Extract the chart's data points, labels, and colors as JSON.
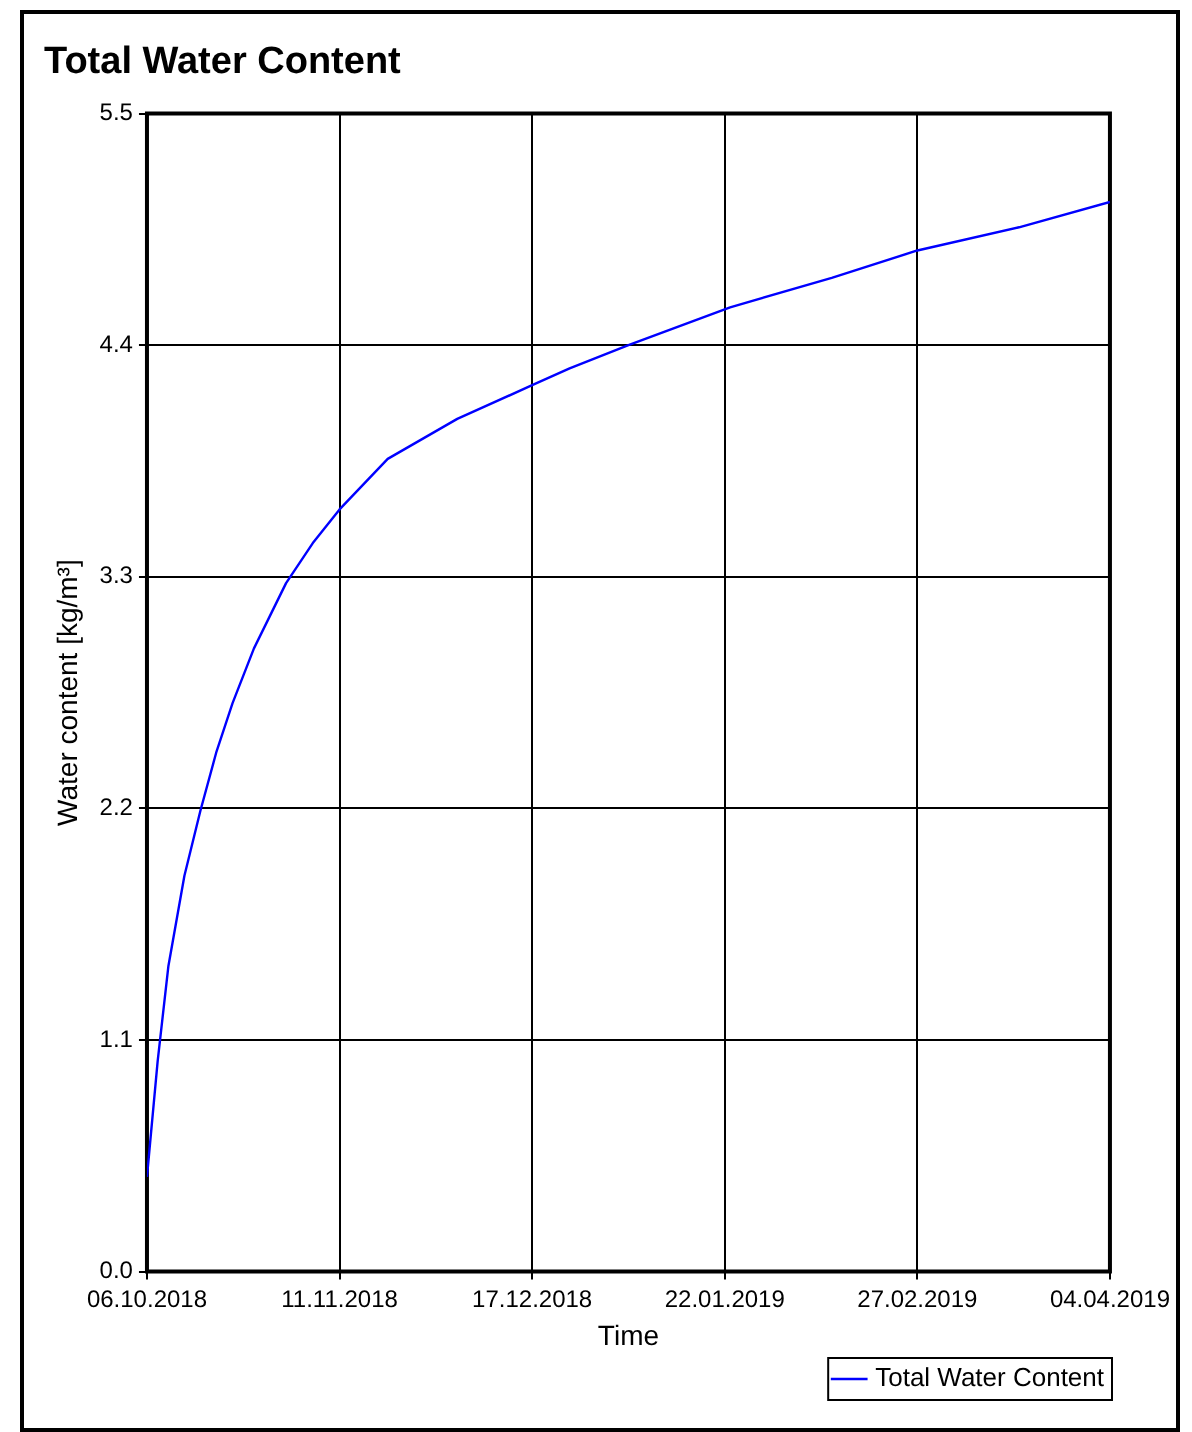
{
  "chart_data": {
    "type": "line",
    "title": "Total Water Content",
    "xlabel": "Time",
    "ylabel": "Water content [kg/m³]",
    "x": [
      "2018-10-06",
      "2018-10-08",
      "2018-10-10",
      "2018-10-13",
      "2018-10-16",
      "2018-10-19",
      "2018-10-22",
      "2018-10-26",
      "2018-11-01",
      "2018-11-06",
      "2018-11-11",
      "2018-11-20",
      "2018-12-03",
      "2018-12-17",
      "2018-12-24",
      "2019-01-04",
      "2019-01-23",
      "2019-02-11",
      "2019-02-27",
      "2019-03-18",
      "2019-04-04"
    ],
    "series": [
      {
        "name": "Total Water Content",
        "color": "#0000ff",
        "values": [
          0.45,
          1.0,
          1.45,
          1.88,
          2.19,
          2.47,
          2.7,
          2.96,
          3.27,
          3.46,
          3.62,
          3.86,
          4.05,
          4.21,
          4.29,
          4.4,
          4.58,
          4.72,
          4.85,
          4.96,
          5.08
        ]
      }
    ],
    "xlim": [
      "2018-10-06",
      "2019-04-04"
    ],
    "xticks": [
      {
        "value": "2018-10-06",
        "label": "06.10.2018"
      },
      {
        "value": "2018-11-11",
        "label": "11.11.2018"
      },
      {
        "value": "2018-12-17",
        "label": "17.12.2018"
      },
      {
        "value": "2019-01-22",
        "label": "22.01.2019"
      },
      {
        "value": "2019-02-27",
        "label": "27.02.2019"
      },
      {
        "value": "2019-04-04",
        "label": "04.04.2019"
      }
    ],
    "ylim": [
      0,
      5.5
    ],
    "yticks": [
      {
        "value": 0,
        "label": "0.0"
      },
      1.1,
      2.2,
      3.3,
      4.4,
      5.5
    ],
    "grid": true,
    "legend": "bottom right",
    "marker": "none",
    "line_style": "solid"
  }
}
